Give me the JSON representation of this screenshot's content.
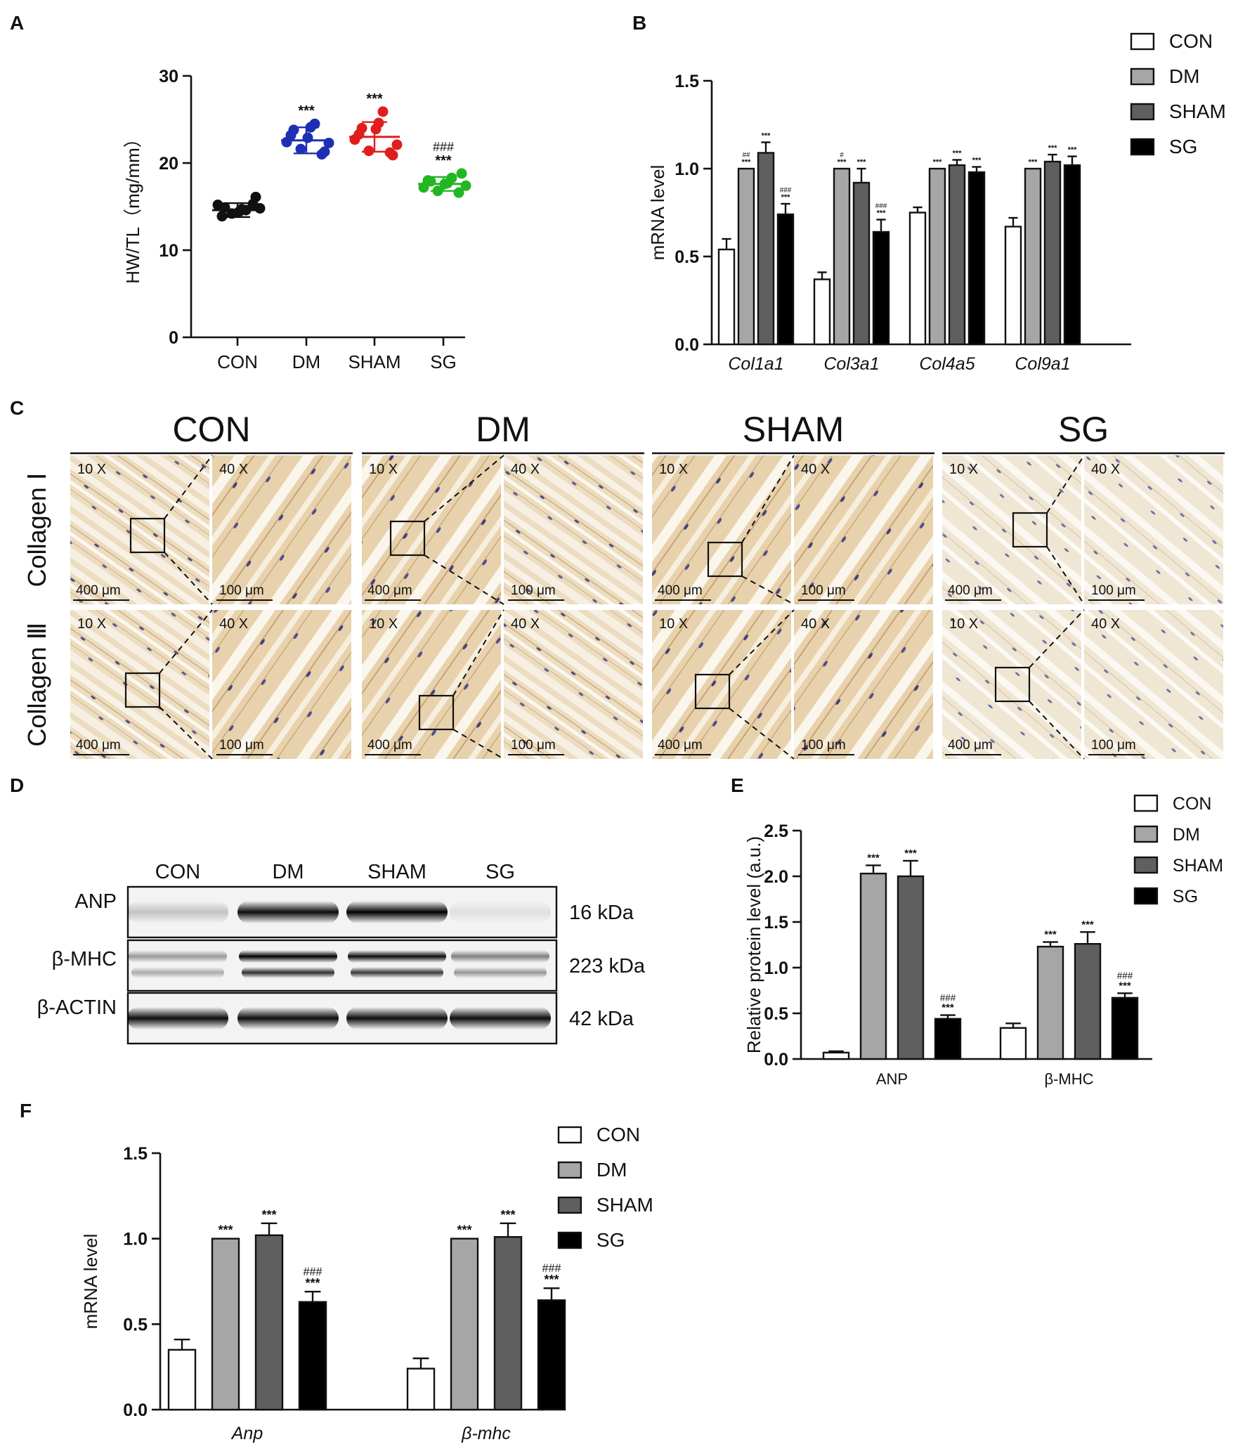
{
  "panels": {
    "A": "A",
    "B": "B",
    "C": "C",
    "D": "D",
    "E": "E",
    "F": "F"
  },
  "groups": [
    "CON",
    "DM",
    "SHAM",
    "SG"
  ],
  "colors": {
    "CON": "#ffffff",
    "DM": "#a6a6a6",
    "SHAM": "#5f5f5f",
    "SG": "#000000",
    "dotCON": "#111111",
    "dotDM": "#1f2fb4",
    "dotSHAM": "#e01e1e",
    "dotSG": "#22b622"
  },
  "chart_data": [
    {
      "id": "A",
      "type": "scatter",
      "ylabel": "HW/TL（mg/mm）",
      "ylim": [
        0,
        30
      ],
      "yticks": [
        "0",
        "10",
        "20",
        "30"
      ],
      "categories": [
        "CON",
        "DM",
        "SHAM",
        "SG"
      ],
      "means": [
        14.6,
        22.6,
        23.0,
        17.6
      ],
      "sd": [
        0.8,
        1.5,
        1.7,
        0.8
      ],
      "points": [
        [
          15.2,
          14.9,
          14.2,
          14.4,
          14.6,
          15.3,
          14.8,
          13.9,
          14.7,
          16.1
        ],
        [
          22.4,
          23.8,
          21.6,
          22.9,
          24.5,
          21.0,
          22.3,
          23.2,
          24.1,
          21.3
        ],
        [
          22.7,
          24.0,
          21.4,
          23.9,
          25.9,
          21.2,
          22.1,
          23.3,
          24.6,
          20.9
        ],
        [
          17.2,
          17.9,
          16.8,
          17.6,
          18.3,
          16.6,
          17.4,
          18.0,
          17.7,
          18.8
        ]
      ],
      "annotations": [
        [
          "",
          ""
        ],
        [
          "***",
          ""
        ],
        [
          "***",
          ""
        ],
        [
          "***",
          "###"
        ]
      ]
    },
    {
      "id": "B",
      "type": "bar",
      "ylabel": "mRNA level",
      "ylim": [
        0,
        1.5
      ],
      "yticks": [
        "0.0",
        "0.5",
        "1.0",
        "1.5"
      ],
      "categories": [
        "Col1a1",
        "Col3a1",
        "Col4a5",
        "Col9a1"
      ],
      "legend": [
        "CON",
        "DM",
        "SHAM",
        "SG"
      ],
      "series": [
        {
          "name": "CON",
          "values": [
            0.54,
            0.37,
            0.75,
            0.67
          ],
          "err": [
            0.06,
            0.04,
            0.03,
            0.05
          ]
        },
        {
          "name": "DM",
          "values": [
            1.0,
            1.0,
            1.0,
            1.0
          ],
          "err": [
            0,
            0,
            0,
            0
          ]
        },
        {
          "name": "SHAM",
          "values": [
            1.09,
            0.92,
            1.02,
            1.04
          ],
          "err": [
            0.06,
            0.08,
            0.03,
            0.04
          ]
        },
        {
          "name": "SG",
          "values": [
            0.74,
            0.64,
            0.98,
            1.02
          ],
          "err": [
            0.06,
            0.07,
            0.03,
            0.05
          ]
        }
      ],
      "annotations": [
        [
          [
            "",
            ""
          ],
          [
            "***",
            "##"
          ],
          [
            "***",
            ""
          ],
          [
            "***",
            "###"
          ]
        ],
        [
          [
            "",
            ""
          ],
          [
            "***",
            "#"
          ],
          [
            "***",
            ""
          ],
          [
            "***",
            "###"
          ]
        ],
        [
          [
            "",
            ""
          ],
          [
            "***",
            ""
          ],
          [
            "***",
            ""
          ],
          [
            "***",
            ""
          ]
        ],
        [
          [
            "",
            ""
          ],
          [
            "***",
            ""
          ],
          [
            "***",
            ""
          ],
          [
            "***",
            ""
          ]
        ]
      ]
    },
    {
      "id": "E",
      "type": "bar",
      "ylabel": "Relative protein level (a.u.)",
      "ylim": [
        0,
        2.5
      ],
      "yticks": [
        "0.0",
        "0.5",
        "1.0",
        "1.5",
        "2.0",
        "2.5"
      ],
      "categories": [
        "ANP",
        "β-MHC"
      ],
      "legend": [
        "CON",
        "DM",
        "SHAM",
        "SG"
      ],
      "series": [
        {
          "name": "CON",
          "values": [
            0.07,
            0.34
          ],
          "err": [
            0.015,
            0.05
          ]
        },
        {
          "name": "DM",
          "values": [
            2.03,
            1.23
          ],
          "err": [
            0.09,
            0.05
          ]
        },
        {
          "name": "SHAM",
          "values": [
            2.0,
            1.26
          ],
          "err": [
            0.17,
            0.13
          ]
        },
        {
          "name": "SG",
          "values": [
            0.44,
            0.67
          ],
          "err": [
            0.04,
            0.05
          ]
        }
      ],
      "annotations": [
        [
          [
            "",
            ""
          ],
          [
            "***",
            ""
          ],
          [
            "***",
            ""
          ],
          [
            "***",
            "###"
          ]
        ],
        [
          [
            "",
            ""
          ],
          [
            "***",
            ""
          ],
          [
            "***",
            ""
          ],
          [
            "***",
            "###"
          ]
        ]
      ]
    },
    {
      "id": "F",
      "type": "bar",
      "ylabel": "mRNA level",
      "ylim": [
        0,
        1.5
      ],
      "yticks": [
        "0.0",
        "0.5",
        "1.0",
        "1.5"
      ],
      "categories": [
        "Anp",
        "β-mhc"
      ],
      "legend": [
        "CON",
        "DM",
        "SHAM",
        "SG"
      ],
      "series": [
        {
          "name": "CON",
          "values": [
            0.35,
            0.24
          ],
          "err": [
            0.06,
            0.06
          ]
        },
        {
          "name": "DM",
          "values": [
            1.0,
            1.0
          ],
          "err": [
            0,
            0
          ]
        },
        {
          "name": "SHAM",
          "values": [
            1.02,
            1.01
          ],
          "err": [
            0.07,
            0.08
          ]
        },
        {
          "name": "SG",
          "values": [
            0.63,
            0.64
          ],
          "err": [
            0.06,
            0.07
          ]
        }
      ],
      "annotations": [
        [
          [
            "",
            ""
          ],
          [
            "***",
            ""
          ],
          [
            "***",
            ""
          ],
          [
            "***",
            "###"
          ]
        ],
        [
          [
            "",
            ""
          ],
          [
            "***",
            ""
          ],
          [
            "***",
            ""
          ],
          [
            "***",
            "###"
          ]
        ]
      ]
    }
  ],
  "histology": {
    "columns": [
      "CON",
      "DM",
      "SHAM",
      "SG"
    ],
    "rows": [
      "Collagen Ⅰ",
      "Collagen Ⅲ"
    ],
    "mag_low": "10 X",
    "mag_high": "40 X",
    "scale_low": "400 μm",
    "scale_high": "100 μm"
  },
  "western": {
    "lanes": [
      "CON",
      "DM",
      "SHAM",
      "SG"
    ],
    "bands": [
      {
        "name": "ANP",
        "size": "16 kDa",
        "intensity": [
          0.2,
          0.95,
          1.0,
          0.08
        ]
      },
      {
        "name": "β-MHC",
        "size": "223 kDa",
        "intensity": [
          0.35,
          0.95,
          0.9,
          0.45
        ]
      },
      {
        "name": "β-ACTIN",
        "size": "42 kDa",
        "intensity": [
          0.95,
          0.95,
          0.95,
          0.95
        ]
      }
    ]
  }
}
